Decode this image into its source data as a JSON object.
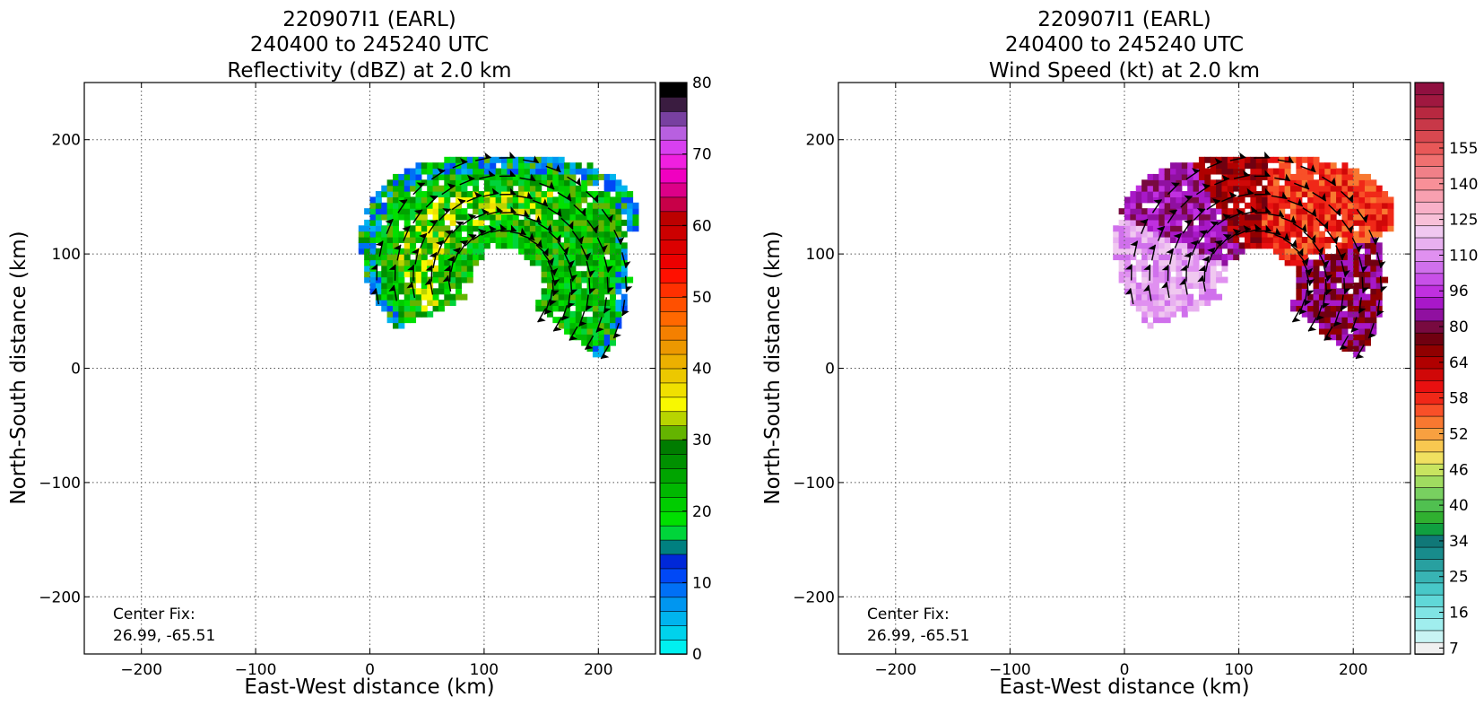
{
  "chart_data": [
    {
      "type": "heatmap",
      "title_lines": [
        "220907I1 (EARL)",
        "240400 to 245240 UTC",
        "Reflectivity (dBZ) at 2.0 km"
      ],
      "xlabel": "East-West distance (km)",
      "ylabel": "North-South distance (km)",
      "xlim": [
        -250,
        250
      ],
      "ylim": [
        -250,
        250
      ],
      "xticks": [
        -200,
        -100,
        0,
        100,
        200
      ],
      "yticks": [
        -200,
        -100,
        0,
        100,
        200
      ],
      "x_tick_labels": [
        "−200",
        "−100",
        "0",
        "100",
        "200"
      ],
      "y_tick_labels": [
        "−200",
        "−100",
        "0",
        "100",
        "200"
      ],
      "grid": true,
      "annotation_lines": [
        "Center Fix:",
        "26.99, -65.51"
      ],
      "field": "reflectivity",
      "colorbar": {
        "min": 0,
        "max": 80,
        "ticks": [
          0,
          10,
          20,
          30,
          40,
          50,
          60,
          70,
          80
        ],
        "tick_labels": [
          "0",
          "10",
          "20",
          "30",
          "40",
          "50",
          "60",
          "70",
          "80"
        ],
        "colors": [
          "#00f0f0",
          "#00d2ec",
          "#00b4ee",
          "#0096f0",
          "#0070f6",
          "#0048f6",
          "#0028d8",
          "#008080",
          "#00d43a",
          "#00e000",
          "#00cc00",
          "#00b800",
          "#00a400",
          "#009000",
          "#007c00",
          "#64b400",
          "#b8d400",
          "#f8f800",
          "#f0e000",
          "#ecc800",
          "#ecb000",
          "#ec9800",
          "#f48000",
          "#ff6800",
          "#ff5000",
          "#ff3000",
          "#ff1000",
          "#ec0000",
          "#dc0000",
          "#cc0000",
          "#bc0000",
          "#c80048",
          "#dc0088",
          "#f000c0",
          "#f020e0",
          "#d840f0",
          "#b860e0",
          "#7840a0",
          "#3a1c40",
          "#000000"
        ]
      }
    },
    {
      "type": "heatmap",
      "title_lines": [
        "220907I1 (EARL)",
        "240400 to 245240 UTC",
        "Wind Speed (kt) at 2.0 km"
      ],
      "xlabel": "East-West distance (km)",
      "ylabel": "North-South distance (km)",
      "xlim": [
        -250,
        250
      ],
      "ylim": [
        -250,
        250
      ],
      "xticks": [
        -200,
        -100,
        0,
        100,
        200
      ],
      "yticks": [
        -200,
        -100,
        0,
        100,
        200
      ],
      "x_tick_labels": [
        "−200",
        "−100",
        "0",
        "100",
        "200"
      ],
      "y_tick_labels": [
        "−200",
        "−100",
        "0",
        "100",
        "200"
      ],
      "grid": true,
      "annotation_lines": [
        "Center Fix:",
        "26.99, -65.51"
      ],
      "field": "wind_speed",
      "colorbar": {
        "tick_labels": [
          "7",
          "16",
          "25",
          "34",
          "40",
          "46",
          "52",
          "58",
          "64",
          "80",
          "96",
          "110",
          "125",
          "140",
          "155"
        ],
        "colors": [
          "#f0f0f0",
          "#c8f4f4",
          "#a0eeee",
          "#80e4e4",
          "#60d8d8",
          "#48c8c8",
          "#38b4b4",
          "#28a0a0",
          "#188c8c",
          "#107878",
          "#10a040",
          "#30b030",
          "#50c050",
          "#78d060",
          "#a0dc60",
          "#c8e460",
          "#f0e060",
          "#f8c850",
          "#f8a040",
          "#f87830",
          "#f85028",
          "#f02818",
          "#e81010",
          "#d00808",
          "#b00000",
          "#900000",
          "#700010",
          "#780a40",
          "#9010a0",
          "#a818c8",
          "#c030e0",
          "#c850e8",
          "#d070ec",
          "#e090f0",
          "#e8b0f0",
          "#f0c8f0",
          "#f8c0d8",
          "#f8b0c8",
          "#f8a0b0",
          "#f89098",
          "#f08088",
          "#f07070",
          "#e85858",
          "#d84850",
          "#c83848",
          "#b82840",
          "#a01840",
          "#901040"
        ]
      }
    }
  ]
}
